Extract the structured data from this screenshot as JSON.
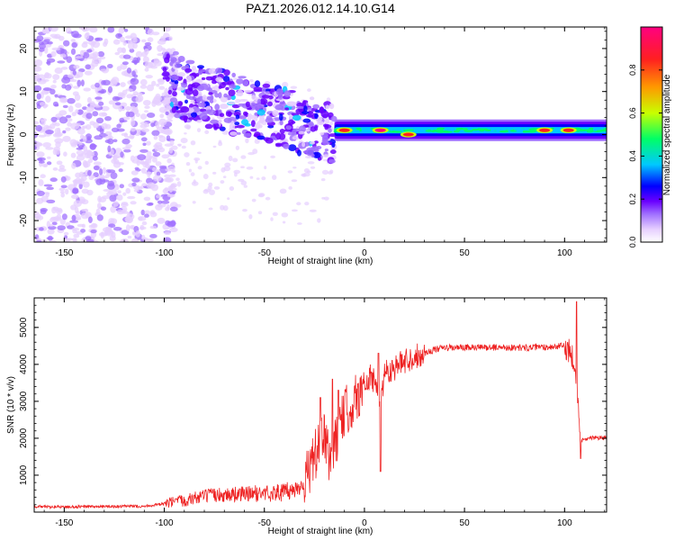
{
  "title": "PAZ1.2026.012.14.10.G14",
  "chart_data": [
    {
      "type": "heatmap",
      "name": "spectrogram",
      "xlabel": "Height of straight line (km)",
      "ylabel": "Frequency (Hz)",
      "xlim": [
        -165,
        121
      ],
      "ylim": [
        -25,
        25
      ],
      "xticks": [
        -150,
        -100,
        -50,
        0,
        50,
        100
      ],
      "yticks": [
        -20,
        -10,
        0,
        10,
        20
      ],
      "colorbar": {
        "label": "Normalized spectral amplitude",
        "range": [
          0,
          1
        ],
        "ticks": [
          0.0,
          0.2,
          0.4,
          0.6,
          0.8
        ],
        "tick_labels": [
          "0.0",
          "0.2",
          "0.4",
          "0.6",
          "0.8"
        ],
        "colors": [
          "#ffffff",
          "#e6cfff",
          "#a070ff",
          "#6a00ff",
          "#0000ff",
          "#00c8ff",
          "#00ff66",
          "#c8ff00",
          "#ff9900",
          "#ff2020",
          "#ff0080"
        ]
      },
      "description_series": {
        "noise_region_x": [
          -165,
          -100
        ],
        "scatter_region_x": [
          -100,
          -15
        ],
        "signal_band_x": [
          -15,
          121
        ],
        "signal_band_freq_center": 1,
        "signal_band_halfwidth_hz": 2.5,
        "hot_spots": [
          {
            "x": -10,
            "f": 1,
            "amp": 0.9
          },
          {
            "x": 8,
            "f": 1,
            "amp": 0.95
          },
          {
            "x": 22,
            "f": 0,
            "amp": 0.9
          },
          {
            "x": 90,
            "f": 1,
            "amp": 0.85
          },
          {
            "x": 102,
            "f": 1,
            "amp": 0.9
          }
        ]
      }
    },
    {
      "type": "line",
      "name": "snr",
      "xlabel": "Height of straight line (km)",
      "ylabel": "SNR (10 * v/v)",
      "xlim": [
        -165,
        121
      ],
      "ylim": [
        0,
        5800
      ],
      "xticks": [
        -150,
        -100,
        -50,
        0,
        50,
        100
      ],
      "yticks": [
        1000,
        2000,
        3000,
        4000,
        5000
      ],
      "line_color": "#ee2222",
      "series": [
        {
          "name": "SNR",
          "x": [
            -165,
            -150,
            -130,
            -110,
            -100,
            -95,
            -90,
            -85,
            -80,
            -75,
            -70,
            -65,
            -60,
            -55,
            -50,
            -45,
            -40,
            -35,
            -30,
            -28,
            -25,
            -22,
            -20,
            -18,
            -15,
            -12,
            -10,
            -8,
            -5,
            -2,
            0,
            3,
            5,
            8,
            10,
            15,
            20,
            25,
            30,
            35,
            40,
            50,
            60,
            70,
            80,
            90,
            95,
            100,
            103,
            105,
            106,
            107,
            108,
            110,
            121
          ],
          "y": [
            150,
            140,
            150,
            160,
            220,
            260,
            320,
            380,
            430,
            460,
            470,
            480,
            490,
            500,
            510,
            520,
            540,
            600,
            800,
            1100,
            1500,
            1800,
            2000,
            1500,
            1800,
            2300,
            2700,
            2800,
            3000,
            3300,
            3300,
            3700,
            3500,
            2900,
            3800,
            3900,
            4100,
            4200,
            4300,
            4400,
            4450,
            4450,
            4460,
            4460,
            4450,
            4470,
            4480,
            4500,
            4350,
            4100,
            3500,
            2600,
            1900,
            2000,
            2020
          ]
        }
      ],
      "spikes": [
        {
          "x": -22,
          "y": 3100
        },
        {
          "x": -16,
          "y": 3600
        },
        {
          "x": -13,
          "y": 3300
        },
        {
          "x": 7,
          "y": 4300
        },
        {
          "x": 8,
          "y": 1100
        },
        {
          "x": 106,
          "y": 5700
        },
        {
          "x": 108,
          "y": 1450
        }
      ]
    }
  ]
}
